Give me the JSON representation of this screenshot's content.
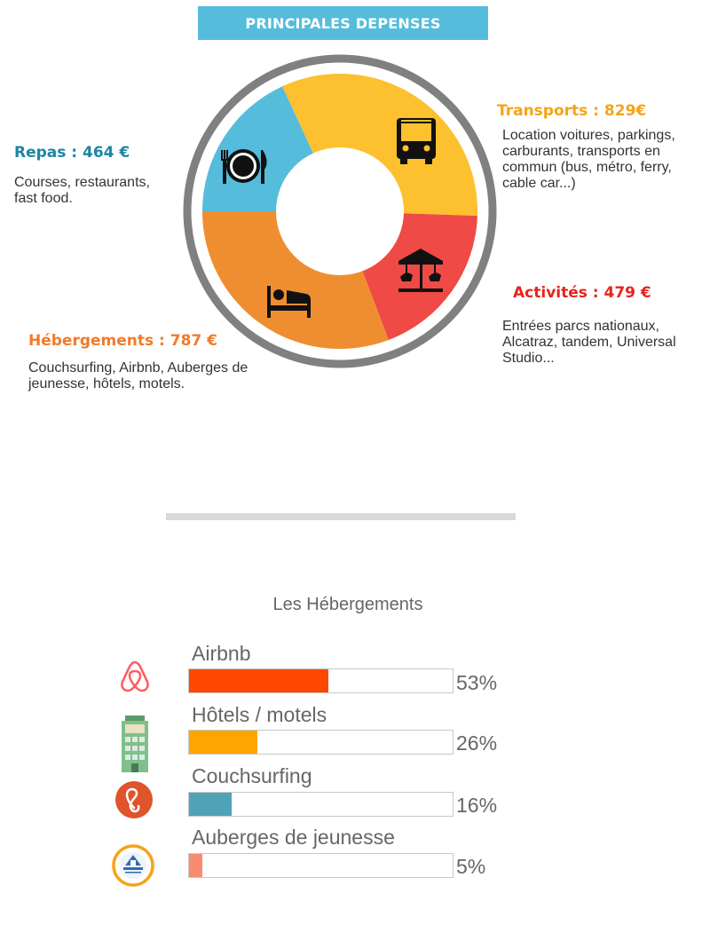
{
  "header": {
    "title": "PRINCIPALES DEPENSES"
  },
  "expenses": [
    {
      "key": "repas",
      "title": "Repas : 464 €",
      "description": "Courses, restaurants, fast food.",
      "color": "#1d85a3",
      "icon": "dining-icon"
    },
    {
      "key": "transports",
      "title": "Transports : 829€",
      "description": "Location voitures, parkings, carburants, transports en commun (bus, métro, ferry, cable car...)",
      "color": "#f5a31a",
      "icon": "bus-icon"
    },
    {
      "key": "activites",
      "title": "Activités : 479 €",
      "description": "Entrées parcs nationaux, Alcatraz, tandem, Universal Studio...",
      "color": "#e8231a",
      "icon": "carousel-icon"
    },
    {
      "key": "hebergements",
      "title": "Hébergements : 787 €",
      "description": "Couchsurfing, Airbnb, Auberges de jeunesse, hôtels, motels.",
      "color": "#f07b2a",
      "icon": "bed-icon"
    }
  ],
  "chart_data": [
    {
      "type": "pie",
      "title": "PRINCIPALES DEPENSES",
      "categories": [
        "Repas",
        "Transports",
        "Activités",
        "Hébergements"
      ],
      "values": [
        464,
        829,
        479,
        787
      ],
      "unit": "€",
      "colors": [
        "#56bcdb",
        "#fdc02f",
        "#ef4a45",
        "#ef8e30"
      ],
      "hole": "donut"
    },
    {
      "type": "bar",
      "title": "Les Hébergements",
      "categories": [
        "Airbnb",
        "Hôtels / motels",
        "Couchsurfing",
        "Auberges de jeunesse"
      ],
      "values": [
        53,
        26,
        16,
        5
      ],
      "value_labels": [
        "53%",
        "26%",
        "16%",
        "5%"
      ],
      "unit": "%",
      "ylim": [
        0,
        100
      ],
      "colors": [
        "#fe4701",
        "#ffa500",
        "#4fa3b7",
        "#f98c6f"
      ],
      "icons": [
        "airbnb-icon",
        "hotel-icon",
        "couchsurfing-icon",
        "hostelling-icon"
      ]
    }
  ]
}
